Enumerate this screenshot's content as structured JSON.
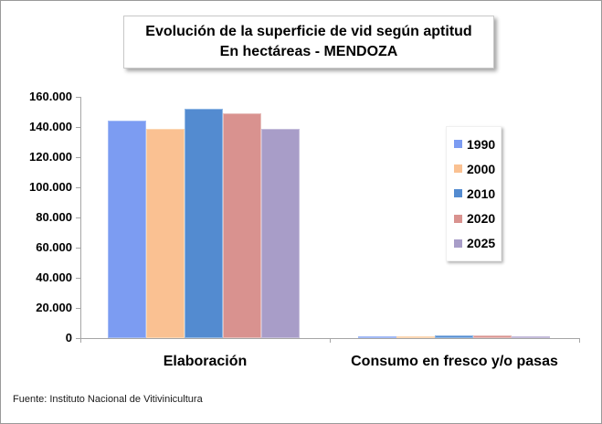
{
  "title": {
    "line1": "Evolución de la superficie de vid según aptitud",
    "line2": "En hectáreas - MENDOZA"
  },
  "footer": {
    "source": "Fuente: Instituto Nacional de Vitivinicultura"
  },
  "chart_data": {
    "type": "bar",
    "title": "Evolución de la superficie de vid según aptitud - En hectáreas - MENDOZA",
    "categories": [
      "Elaboración",
      "Consumo en fresco y/o pasas"
    ],
    "series": [
      {
        "name": "1990",
        "color": "#7c9cf2",
        "border_color": "#a3bbf6",
        "values": [
          144000,
          1400
        ]
      },
      {
        "name": "2000",
        "color": "#fac192",
        "border_color": "#fbd7b4",
        "values": [
          139000,
          1200
        ]
      },
      {
        "name": "2010",
        "color": "#538bd0",
        "border_color": "#92b9e5",
        "values": [
          152000,
          2000
        ]
      },
      {
        "name": "2020",
        "color": "#d9928f",
        "border_color": "#e7bdba",
        "values": [
          149000,
          1700
        ]
      },
      {
        "name": "2025",
        "color": "#a89dc8",
        "border_color": "#c5bddb",
        "values": [
          138500,
          1400
        ]
      }
    ],
    "xlabel": "",
    "ylabel": "",
    "ylim": [
      0,
      160000
    ],
    "ytick_step": 20000,
    "ytick_labels": [
      "0",
      "20.000",
      "40.000",
      "60.000",
      "80.000",
      "100.000",
      "120.000",
      "140.000",
      "160.000"
    ],
    "grid": false,
    "legend_position": "right",
    "axis_color": "#a6a6a6"
  }
}
